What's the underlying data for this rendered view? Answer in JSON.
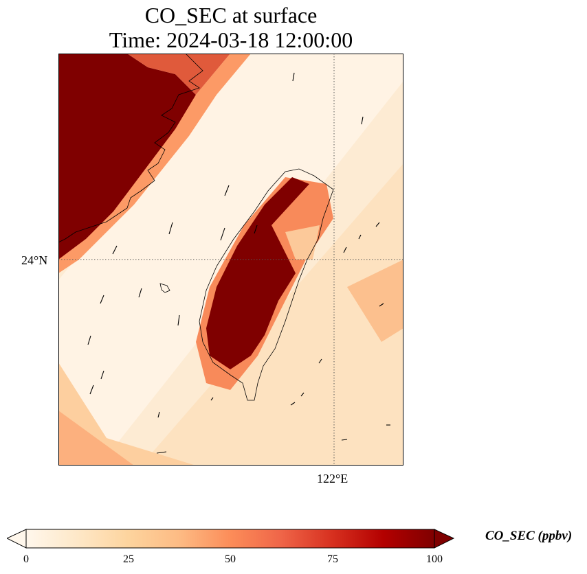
{
  "title": {
    "line1": "CO_SEC at surface",
    "line2": "Time: 2024-03-18 12:00:00"
  },
  "axes": {
    "lat_label": "24°N",
    "lon_label": "122°E"
  },
  "colorbar": {
    "label": "CO_SEC (ppbv)",
    "colormap": "OrRd",
    "colors": [
      "#fff7ec",
      "#fee8c8",
      "#fdd49e",
      "#fdbb84",
      "#fc8d59",
      "#ef6548",
      "#d7301f",
      "#b30000",
      "#7f0000"
    ],
    "vmin": 0,
    "vmax": 100,
    "extend": "both",
    "ticks": [
      "0",
      "25",
      "50",
      "75",
      "100"
    ]
  },
  "map_features": {
    "gridlines": "dotted",
    "coastlines": true,
    "wind_vectors": true
  }
}
